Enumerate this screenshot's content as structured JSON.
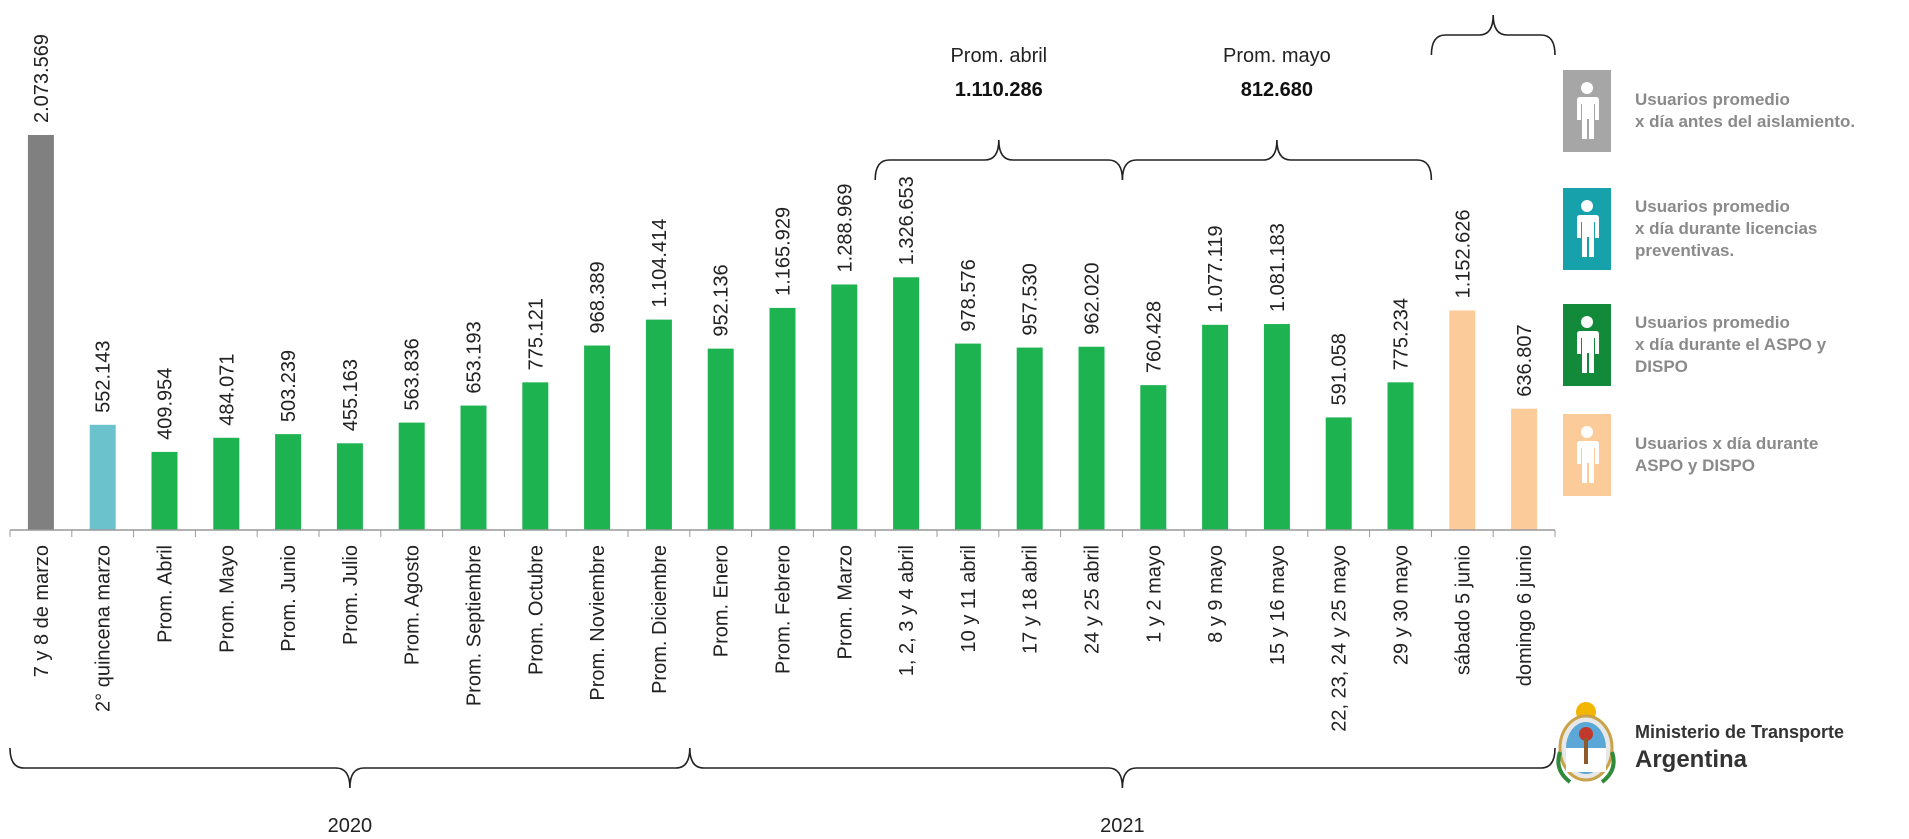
{
  "chart_data": {
    "type": "bar",
    "categories": [
      "7 y 8 de marzo",
      "2° quincena marzo",
      "Prom. Abril",
      "Prom. Mayo",
      "Prom. Junio",
      "Prom. Julio",
      "Prom. Agosto",
      "Prom. Septiembre",
      "Prom. Octubre",
      "Prom. Noviembre",
      "Prom. Diciembre",
      "Prom. Enero",
      "Prom. Febrero",
      "Prom. Marzo",
      "1, 2, 3 y 4 abril",
      "10 y 11 abril",
      "17 y 18 abril",
      "24 y 25 abril",
      "1 y 2 mayo",
      "8 y 9 mayo",
      "15 y 16 mayo",
      "22, 23, 24 y 25 mayo",
      "29 y 30 mayo",
      "sábado 5 junio",
      "domingo 6 junio"
    ],
    "values": [
      2073569,
      552143,
      409954,
      484071,
      503239,
      455163,
      563836,
      653193,
      775121,
      968389,
      1104414,
      952136,
      1165929,
      1288969,
      1326653,
      978576,
      957530,
      962020,
      760428,
      1077119,
      1081183,
      591058,
      775234,
      1152626,
      636807
    ],
    "value_labels": [
      "2.073.569",
      "552.143",
      "409.954",
      "484.071",
      "503.239",
      "455.163",
      "563.836",
      "653.193",
      "775.121",
      "968.389",
      "1.104.414",
      "952.136",
      "1.165.929",
      "1.288.969",
      "1.326.653",
      "978.576",
      "957.530",
      "962.020",
      "760.428",
      "1.077.119",
      "1.081.183",
      "591.058",
      "775.234",
      "1.152.626",
      "636.807"
    ],
    "groups": [
      0,
      1,
      2,
      2,
      2,
      2,
      2,
      2,
      2,
      2,
      2,
      2,
      2,
      2,
      2,
      2,
      2,
      2,
      2,
      2,
      2,
      2,
      2,
      3,
      3
    ],
    "group_colors": [
      "#808080",
      "#6cc2cc",
      "#1db350",
      "#fccb9a"
    ],
    "ylim": [
      0,
      2073569
    ],
    "years": [
      {
        "label": "2020",
        "from": 0,
        "to": 10
      },
      {
        "label": "2021",
        "from": 11,
        "to": 24
      }
    ],
    "annotations": [
      {
        "label": "Prom. abril",
        "value": "1.110.286",
        "from": 14,
        "to": 17
      },
      {
        "label": "Prom. mayo",
        "value": "812.680",
        "from": 18,
        "to": 22
      }
    ],
    "top_bracket": {
      "from": 23,
      "to": 24
    },
    "legend": [
      {
        "lines": [
          "Usuarios promedio",
          "x día antes del aislamiento."
        ],
        "color": "#a6a6a6"
      },
      {
        "lines": [
          "Usuarios promedio",
          "x día durante licencias",
          "preventivas."
        ],
        "color": "#17a1aa"
      },
      {
        "lines": [
          "Usuarios promedio",
          "x día durante el ASPO y",
          "DISPO"
        ],
        "color": "#138a3a"
      },
      {
        "lines": [
          "Usuarios x día durante",
          "ASPO y DISPO"
        ],
        "color": "#fccb9a"
      }
    ]
  },
  "logo": {
    "ministry": "Ministerio de Transporte",
    "country": "Argentina"
  }
}
